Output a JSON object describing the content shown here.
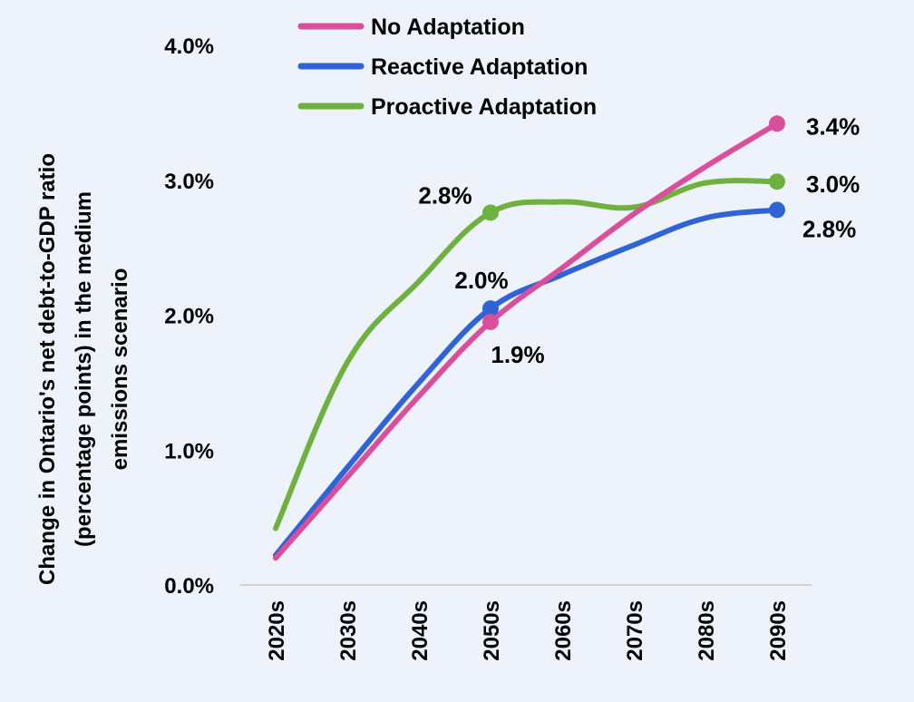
{
  "chart_data": {
    "type": "line",
    "title": "",
    "xlabel": "",
    "ylabel_lines": [
      "Change in Ontario's net debt-to-GDP ratio",
      "(percentage points) in the medium",
      "emissions scenario"
    ],
    "categories": [
      "2020s",
      "2030s",
      "2040s",
      "2050s",
      "2060s",
      "2070s",
      "2080s",
      "2090s"
    ],
    "ylim": [
      0,
      4
    ],
    "yticks": [
      "0.0%",
      "1.0%",
      "2.0%",
      "3.0%",
      "4.0%"
    ],
    "grid": false,
    "legend_position": "top",
    "series": [
      {
        "name": "No Adaptation",
        "color": "#d94f9b",
        "values": [
          0.2,
          0.8,
          1.4,
          1.95,
          2.35,
          2.75,
          3.1,
          3.42
        ],
        "labels": [
          {
            "index": 3,
            "text": "1.9%"
          },
          {
            "index": 7,
            "text": "3.4%"
          }
        ]
      },
      {
        "name": "Reactive Adaptation",
        "color": "#2f63d6",
        "values": [
          0.22,
          0.87,
          1.5,
          2.05,
          2.3,
          2.52,
          2.72,
          2.78
        ],
        "labels": [
          {
            "index": 3,
            "text": "2.0%"
          },
          {
            "index": 7,
            "text": "2.8%"
          }
        ]
      },
      {
        "name": "Proactive Adaptation",
        "color": "#6fb13e",
        "values": [
          0.42,
          1.65,
          2.25,
          2.76,
          2.84,
          2.8,
          2.98,
          2.99
        ],
        "labels": [
          {
            "index": 3,
            "text": "2.8%"
          },
          {
            "index": 7,
            "text": "3.0%"
          }
        ]
      }
    ]
  }
}
